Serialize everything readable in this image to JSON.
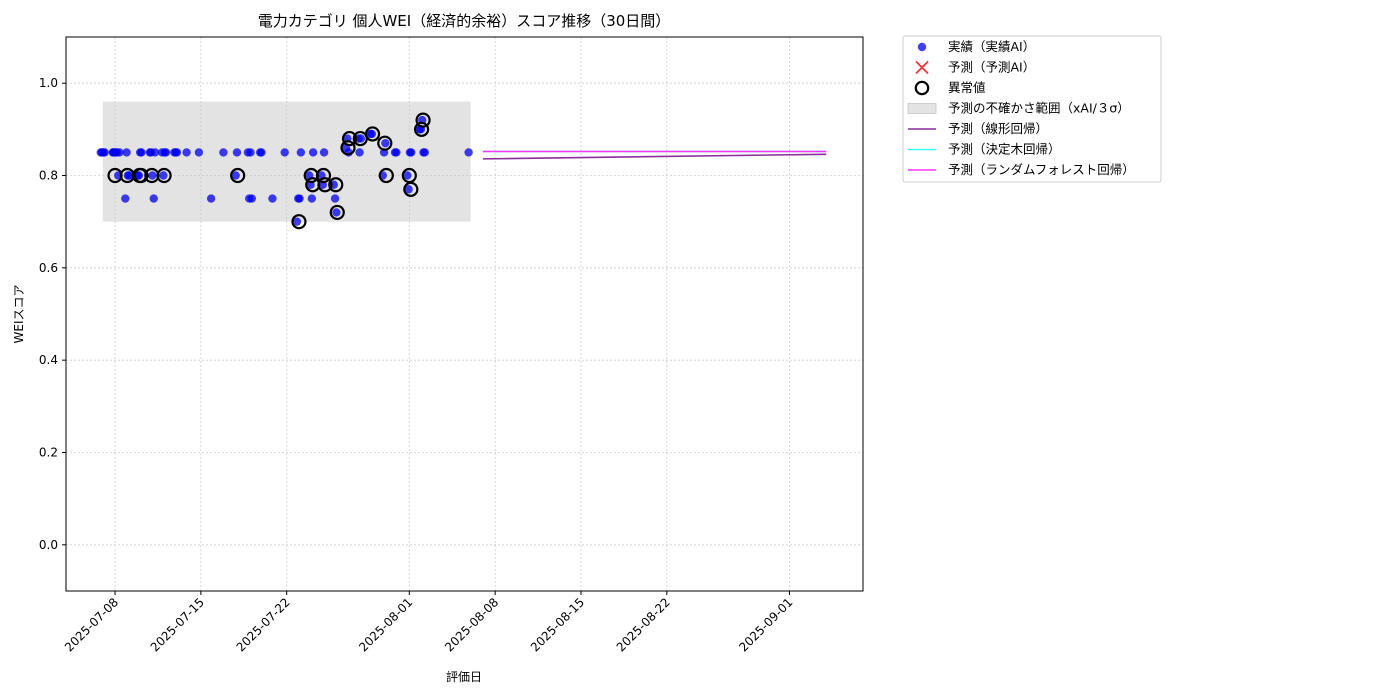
{
  "chart_data": {
    "type": "scatter",
    "title": "電力カテゴリ 個人WEI（経済的余裕）スコア推移（30日間）",
    "xlabel": "評価日",
    "ylabel": "WEIスコア",
    "xlim": [
      "2025-07-04",
      "2025-09-07"
    ],
    "ylim": [
      -0.1,
      1.1
    ],
    "x_ticks": [
      "2025-07-08",
      "2025-07-15",
      "2025-07-22",
      "2025-08-01",
      "2025-08-08",
      "2025-08-15",
      "2025-08-22",
      "2025-09-01"
    ],
    "y_ticks": [
      0.0,
      0.2,
      0.4,
      0.6,
      0.8,
      1.0
    ],
    "y_tick_labels": [
      "0.0",
      "0.2",
      "0.4",
      "0.6",
      "0.8",
      "1.0"
    ],
    "grid": true,
    "legend_placement": "outside-upper-right",
    "colors": {
      "actual": "#0000ee",
      "predicted": "#ff3333",
      "anomaly": "#000000",
      "band": "#cccccc",
      "linear": "#8b2d9c",
      "tree": "#33ffff",
      "forest": "#ff33ff"
    },
    "series": [
      {
        "name": "実績（実績AI）",
        "kind": "scatter",
        "points": [
          [
            "2025-07-07",
            0.85
          ],
          [
            "2025-07-07",
            0.85
          ],
          [
            "2025-07-07",
            0.85
          ],
          [
            "2025-07-07",
            0.85
          ],
          [
            "2025-07-08",
            0.85
          ],
          [
            "2025-07-08",
            0.85
          ],
          [
            "2025-07-08",
            0.85
          ],
          [
            "2025-07-08",
            0.85
          ],
          [
            "2025-07-08",
            0.8
          ],
          [
            "2025-07-08",
            0.85
          ],
          [
            "2025-07-08",
            0.85
          ],
          [
            "2025-07-09",
            0.75
          ],
          [
            "2025-07-09",
            0.85
          ],
          [
            "2025-07-09",
            0.8
          ],
          [
            "2025-07-09",
            0.8
          ],
          [
            "2025-07-10",
            0.8
          ],
          [
            "2025-07-10",
            0.8
          ],
          [
            "2025-07-10",
            0.85
          ],
          [
            "2025-07-10",
            0.85
          ],
          [
            "2025-07-11",
            0.85
          ],
          [
            "2025-07-11",
            0.85
          ],
          [
            "2025-07-11",
            0.8
          ],
          [
            "2025-07-11",
            0.75
          ],
          [
            "2025-07-11",
            0.85
          ],
          [
            "2025-07-12",
            0.85
          ],
          [
            "2025-07-12",
            0.8
          ],
          [
            "2025-07-12",
            0.85
          ],
          [
            "2025-07-12",
            0.85
          ],
          [
            "2025-07-13",
            0.85
          ],
          [
            "2025-07-13",
            0.85
          ],
          [
            "2025-07-13",
            0.85
          ],
          [
            "2025-07-14",
            0.85
          ],
          [
            "2025-07-15",
            0.85
          ],
          [
            "2025-07-16",
            0.75
          ],
          [
            "2025-07-17",
            0.85
          ],
          [
            "2025-07-18",
            0.8
          ],
          [
            "2025-07-18",
            0.85
          ],
          [
            "2025-07-19",
            0.85
          ],
          [
            "2025-07-19",
            0.75
          ],
          [
            "2025-07-19",
            0.85
          ],
          [
            "2025-07-19",
            0.75
          ],
          [
            "2025-07-20",
            0.85
          ],
          [
            "2025-07-20",
            0.85
          ],
          [
            "2025-07-21",
            0.75
          ],
          [
            "2025-07-22",
            0.85
          ],
          [
            "2025-07-23",
            0.7
          ],
          [
            "2025-07-23",
            0.75
          ],
          [
            "2025-07-23",
            0.75
          ],
          [
            "2025-07-23",
            0.85
          ],
          [
            "2025-07-24",
            0.8
          ],
          [
            "2025-07-24",
            0.78
          ],
          [
            "2025-07-24",
            0.75
          ],
          [
            "2025-07-24",
            0.85
          ],
          [
            "2025-07-25",
            0.8
          ],
          [
            "2025-07-25",
            0.78
          ],
          [
            "2025-07-25",
            0.85
          ],
          [
            "2025-07-26",
            0.78
          ],
          [
            "2025-07-26",
            0.75
          ],
          [
            "2025-07-26",
            0.72
          ],
          [
            "2025-07-27",
            0.86
          ],
          [
            "2025-07-27",
            0.88
          ],
          [
            "2025-07-27",
            0.85
          ],
          [
            "2025-07-28",
            0.88
          ],
          [
            "2025-07-28",
            0.85
          ],
          [
            "2025-07-28",
            0.88
          ],
          [
            "2025-07-29",
            0.89
          ],
          [
            "2025-07-29",
            0.89
          ],
          [
            "2025-07-30",
            0.8
          ],
          [
            "2025-07-30",
            0.85
          ],
          [
            "2025-07-30",
            0.87
          ],
          [
            "2025-07-31",
            0.85
          ],
          [
            "2025-07-31",
            0.85
          ],
          [
            "2025-08-01",
            0.8
          ],
          [
            "2025-08-01",
            0.77
          ],
          [
            "2025-08-01",
            0.85
          ],
          [
            "2025-08-01",
            0.85
          ],
          [
            "2025-08-02",
            0.9
          ],
          [
            "2025-08-02",
            0.9
          ],
          [
            "2025-08-02",
            0.92
          ],
          [
            "2025-08-02",
            0.85
          ],
          [
            "2025-08-02",
            0.85
          ],
          [
            "2025-08-06",
            0.85
          ]
        ]
      },
      {
        "name": "予測（予測AI）",
        "kind": "scatter",
        "points": []
      },
      {
        "name": "異常値",
        "kind": "anomaly",
        "points": [
          [
            "2025-07-08",
            0.8
          ],
          [
            "2025-07-09",
            0.8
          ],
          [
            "2025-07-10",
            0.8
          ],
          [
            "2025-07-10",
            0.8
          ],
          [
            "2025-07-11",
            0.8
          ],
          [
            "2025-07-12",
            0.8
          ],
          [
            "2025-07-18",
            0.8
          ],
          [
            "2025-07-23",
            0.7
          ],
          [
            "2025-07-24",
            0.8
          ],
          [
            "2025-07-24",
            0.78
          ],
          [
            "2025-07-25",
            0.8
          ],
          [
            "2025-07-25",
            0.78
          ],
          [
            "2025-07-26",
            0.78
          ],
          [
            "2025-07-26",
            0.72
          ],
          [
            "2025-07-27",
            0.86
          ],
          [
            "2025-07-27",
            0.88
          ],
          [
            "2025-07-28",
            0.88
          ],
          [
            "2025-07-29",
            0.89
          ],
          [
            "2025-07-30",
            0.87
          ],
          [
            "2025-07-30",
            0.8
          ],
          [
            "2025-08-01",
            0.8
          ],
          [
            "2025-08-01",
            0.77
          ],
          [
            "2025-08-02",
            0.9
          ],
          [
            "2025-08-02",
            0.92
          ]
        ]
      },
      {
        "name": "予測の不確かさ範囲（xAI/３σ）",
        "kind": "band",
        "x_range": [
          "2025-07-07",
          "2025-08-06"
        ],
        "y_range": [
          0.7,
          0.96
        ]
      },
      {
        "name": "予測（線形回帰）",
        "kind": "line",
        "points": [
          [
            "2025-08-07",
            0.836
          ],
          [
            "2025-09-04",
            0.846
          ]
        ]
      },
      {
        "name": "予測（決定木回帰）",
        "kind": "line",
        "points": [
          [
            "2025-08-07",
            0.852
          ],
          [
            "2025-09-04",
            0.852
          ]
        ]
      },
      {
        "name": "予測（ランダムフォレスト回帰）",
        "kind": "line",
        "points": [
          [
            "2025-08-07",
            0.852
          ],
          [
            "2025-09-04",
            0.852
          ]
        ]
      }
    ]
  }
}
